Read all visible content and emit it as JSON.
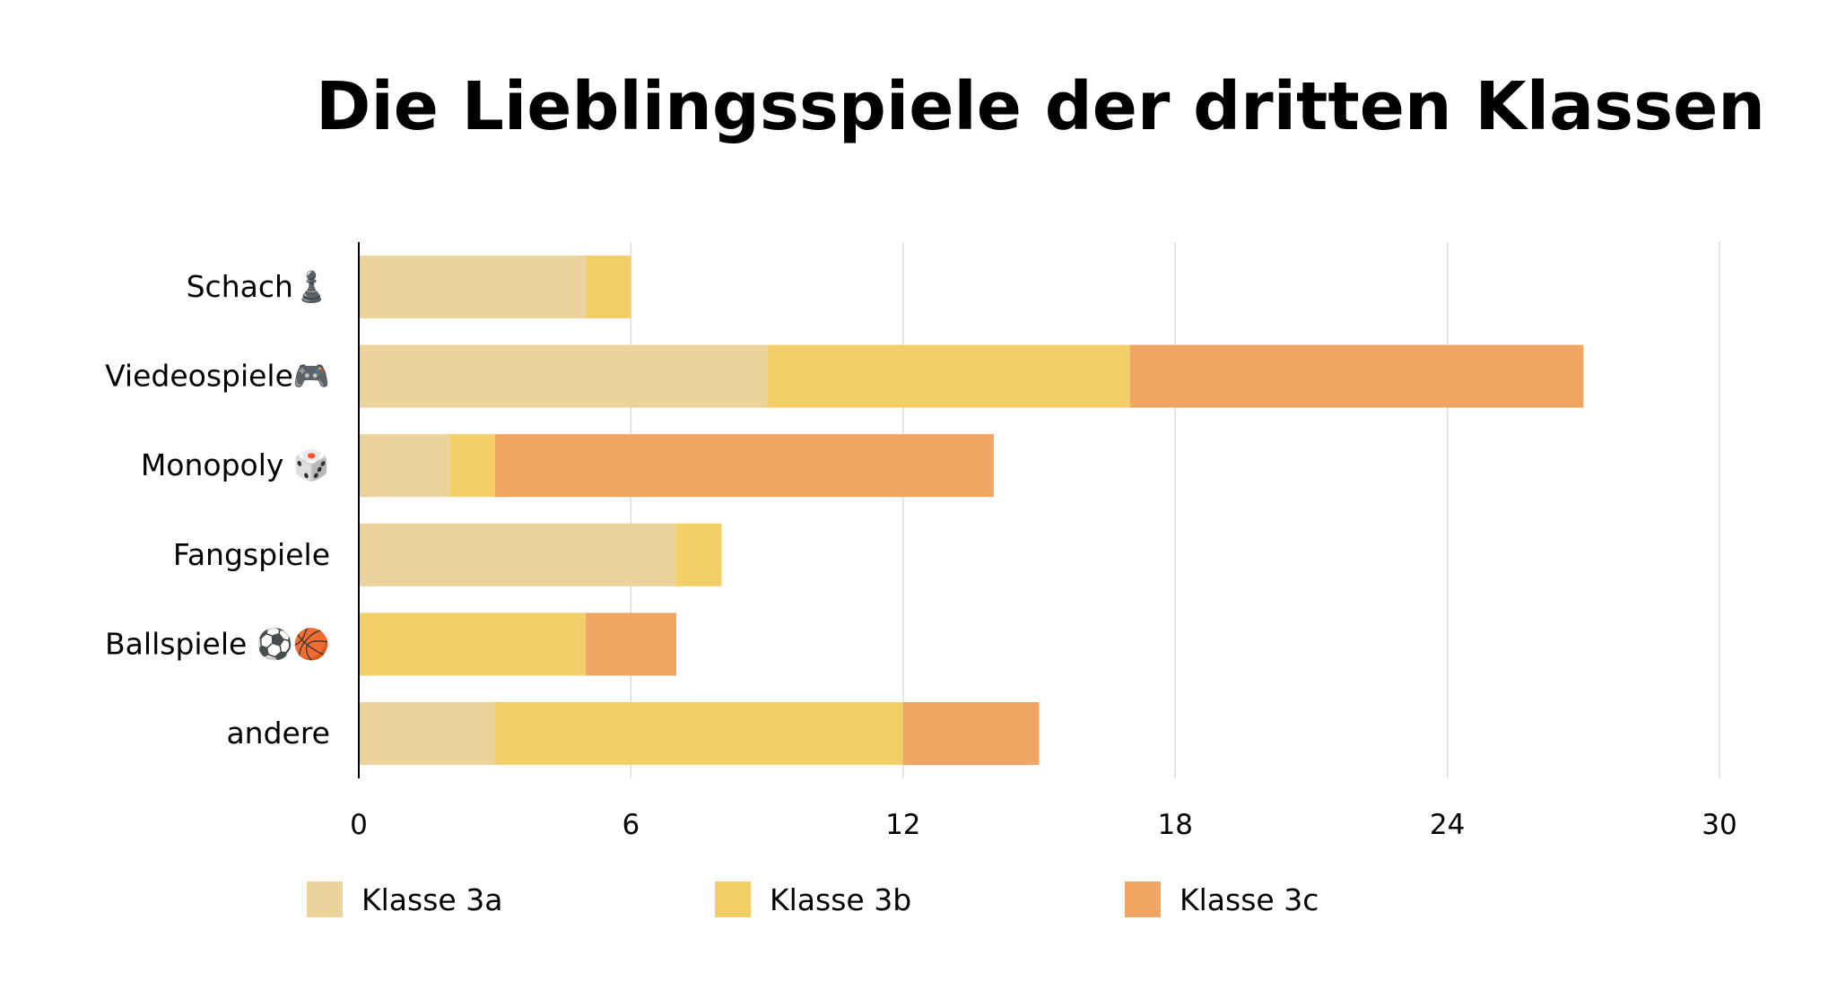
{
  "chart_data": {
    "type": "bar",
    "orientation": "horizontal",
    "stacked": true,
    "title": "Die Lieblingsspiele der dritten Klassen",
    "categories": [
      "Schach♟️",
      "Viedeospiele🎮",
      "Monopoly 🎲",
      "Fangspiele",
      "Ballspiele ⚽️🏀",
      "andere"
    ],
    "series": [
      {
        "name": "Klasse 3a",
        "color": "#ebd39b",
        "values": [
          5,
          9,
          2,
          7,
          0,
          3
        ]
      },
      {
        "name": "Klasse 3b",
        "color": "#f4cf69",
        "values": [
          1,
          8,
          1,
          1,
          5,
          9
        ]
      },
      {
        "name": "Klasse 3c",
        "color": "#f0a662",
        "values": [
          0,
          10,
          11,
          0,
          2,
          3
        ]
      }
    ],
    "xticks": [
      "0",
      "6",
      "12",
      "18",
      "24",
      "30"
    ],
    "xlim": [
      0,
      30
    ],
    "grid": true,
    "legend_position": "bottom"
  }
}
